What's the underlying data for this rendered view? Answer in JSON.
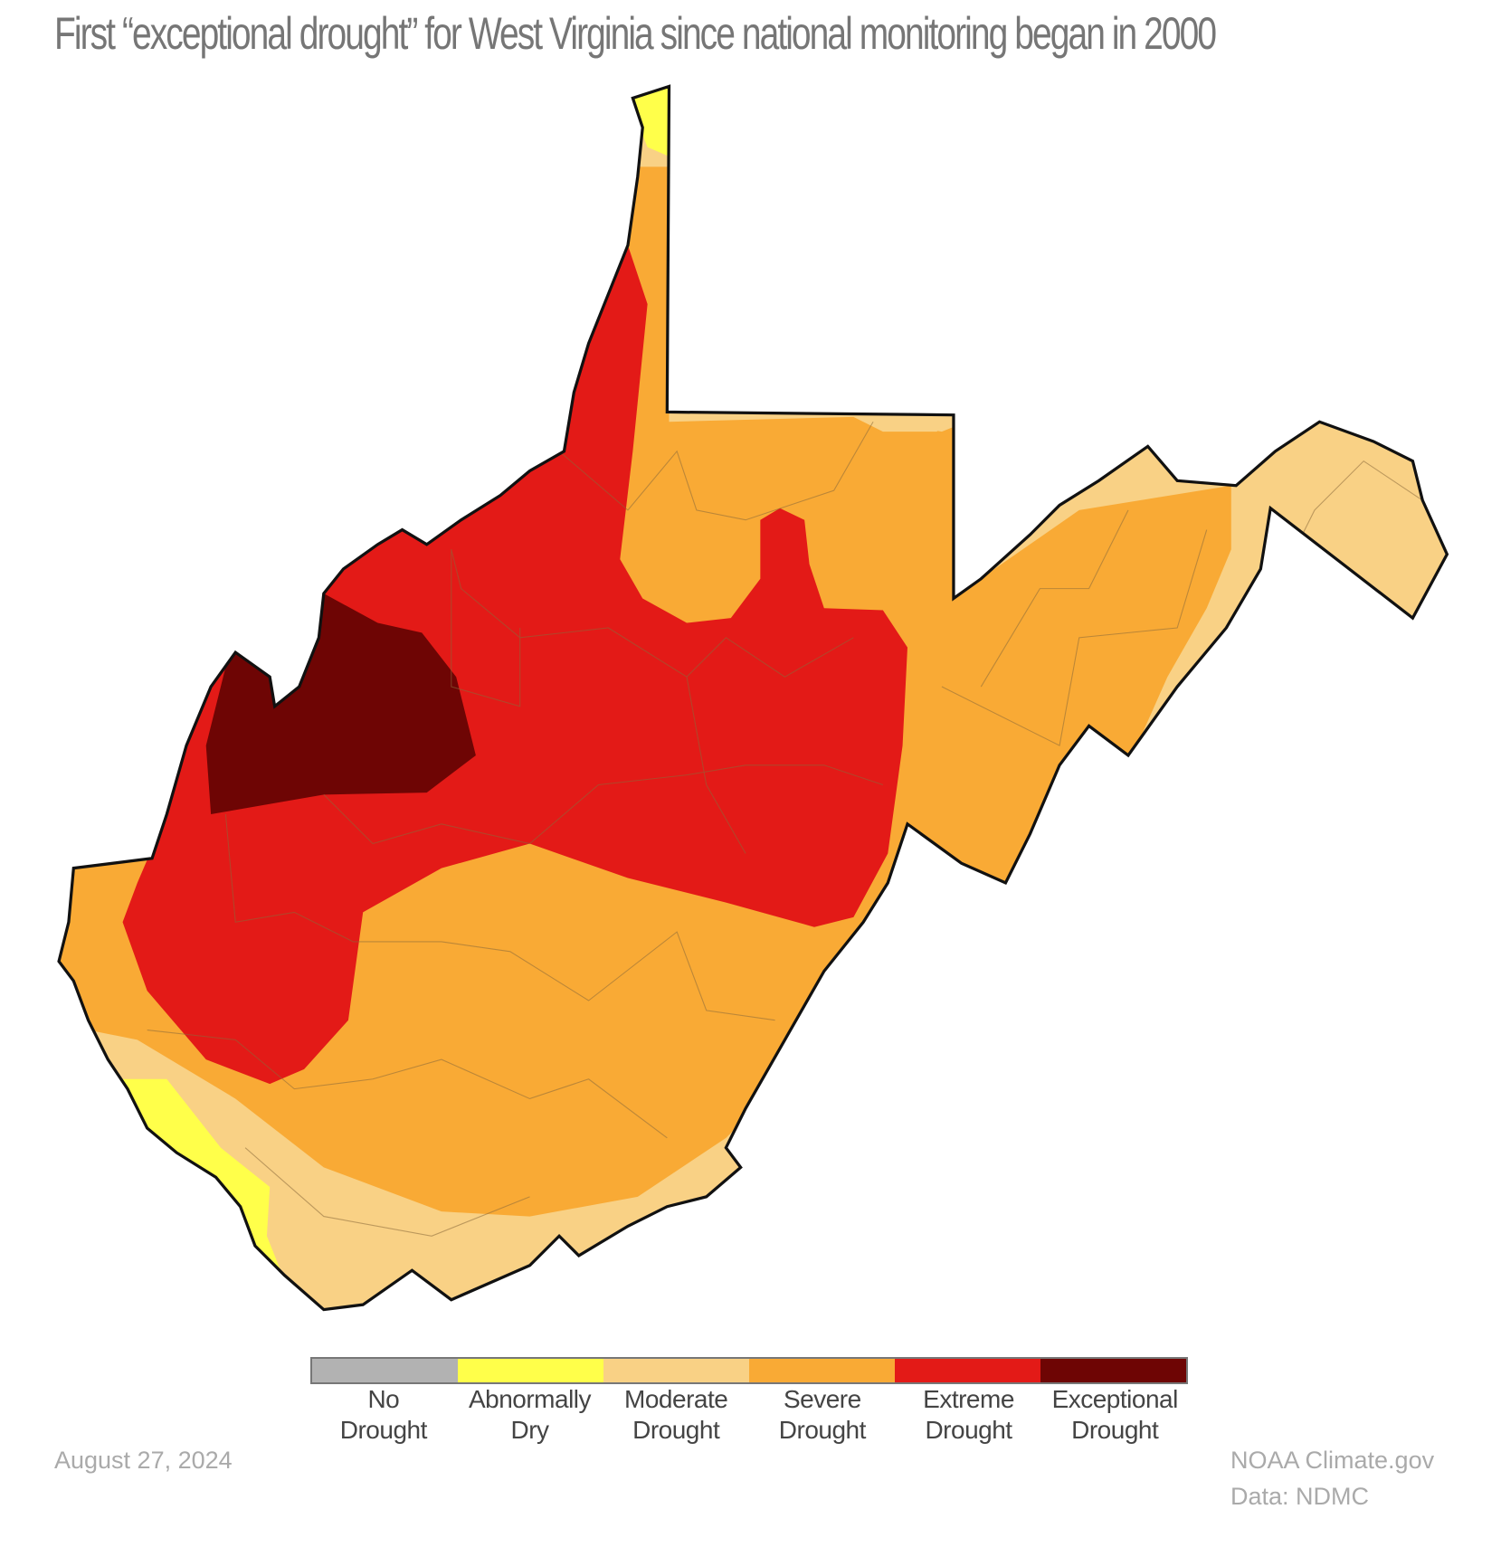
{
  "title": "First “exceptional drought” for West Virginia since national monitoring began in 2000",
  "legend": [
    {
      "line1": "No",
      "line2": "Drought",
      "color": "#B2B2B2"
    },
    {
      "line1": "Abnormally",
      "line2": "Dry",
      "color": "#FFFF4A"
    },
    {
      "line1": "Moderate",
      "line2": "Drought",
      "color": "#F9D185"
    },
    {
      "line1": "Severe",
      "line2": "Drought",
      "color": "#F9AA35"
    },
    {
      "line1": "Extreme",
      "line2": "Drought",
      "color": "#E31A17"
    },
    {
      "line1": "Exceptional",
      "line2": "Drought",
      "color": "#6E0504"
    }
  ],
  "date": "August 27, 2024",
  "credit": "NOAA Climate.gov",
  "source": "Data: NDMC"
}
